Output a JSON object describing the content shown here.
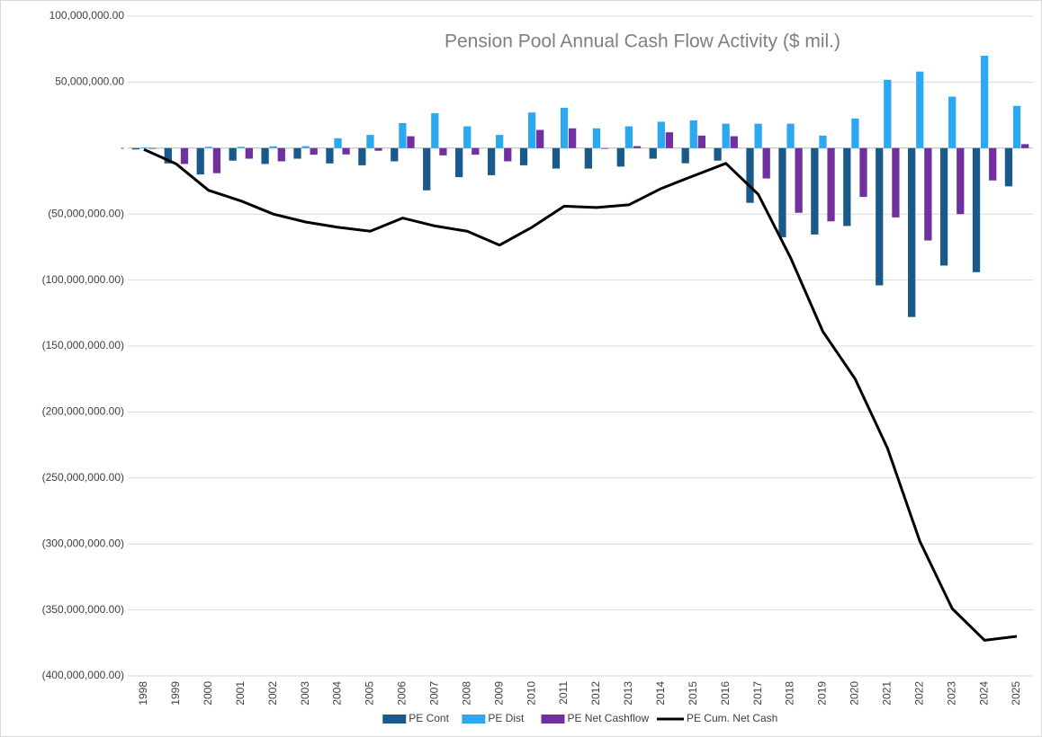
{
  "chart_data": {
    "type": "combo",
    "title": "Pension Pool Annual Cash Flow Activity ($ mil.)",
    "categories": [
      "1998",
      "1999",
      "2000",
      "2001",
      "2002",
      "2003",
      "2004",
      "2005",
      "2006",
      "2007",
      "2008",
      "2009",
      "2010",
      "2011",
      "2012",
      "2013",
      "2014",
      "2015",
      "2016",
      "2017",
      "2018",
      "2019",
      "2020",
      "2021",
      "2022",
      "2023",
      "2024",
      "2025"
    ],
    "series": [
      {
        "name": "PE Cont",
        "type": "bar",
        "color": "#1a5a8a",
        "values": [
          -1000000,
          -11600000,
          -20000000,
          -9500000,
          -12000000,
          -8000000,
          -11600000,
          -13000000,
          -10000000,
          -32000000,
          -22000000,
          -20500000,
          -13000000,
          -15500000,
          -15500000,
          -14000000,
          -8000000,
          -11500000,
          -9500000,
          -41500000,
          -67500000,
          -65500000,
          -59000000,
          -104000000,
          -128000000,
          -89000000,
          -94000000,
          -29000000
        ]
      },
      {
        "name": "PE Dist",
        "type": "bar",
        "color": "#2ba8f0",
        "values": [
          500000,
          0,
          1000000,
          1000000,
          1400000,
          1500000,
          7500000,
          10000000,
          19000000,
          26500000,
          16500000,
          10000000,
          27000000,
          30600000,
          15000000,
          16500000,
          20000000,
          21000000,
          18500000,
          18500000,
          18500000,
          9500000,
          22500000,
          51800000,
          58000000,
          39000000,
          70000000,
          32000000
        ]
      },
      {
        "name": "PE Net Cashflow",
        "type": "bar",
        "color": "#7030a0",
        "values": [
          -500000,
          -12000000,
          -19000000,
          -8000000,
          -10000000,
          -5000000,
          -4800000,
          -2000000,
          9000000,
          -5500000,
          -5000000,
          -10000000,
          13800000,
          15000000,
          -500000,
          1500000,
          12000000,
          9500000,
          9000000,
          -23000000,
          -49000000,
          -55500000,
          -37000000,
          -52500000,
          -70000000,
          -50000000,
          -24500000,
          3000000
        ]
      },
      {
        "name": "PE Cum. Net Cash",
        "type": "line",
        "color": "#000000",
        "values": [
          -1000000,
          -12000000,
          -32000000,
          -40000000,
          -50000000,
          -56000000,
          -60000000,
          -63000000,
          -53000000,
          -59000000,
          -63000000,
          -73500000,
          -60000000,
          -44000000,
          -45000000,
          -43000000,
          -30600000,
          -21000000,
          -11600000,
          -35000000,
          -83000000,
          -139000000,
          -175000000,
          -227500000,
          -298000000,
          -349000000,
          -373000000,
          -370000000
        ]
      }
    ],
    "ylim": [
      -400000000,
      100000000
    ],
    "yticks": [
      {
        "value": 100000000,
        "label": "100,000,000.00"
      },
      {
        "value": 50000000,
        "label": "50,000,000.00"
      },
      {
        "value": 0,
        "label": "-"
      },
      {
        "value": -50000000,
        "label": "(50,000,000.00)"
      },
      {
        "value": -100000000,
        "label": "(100,000,000.00)"
      },
      {
        "value": -150000000,
        "label": "(150,000,000.00)"
      },
      {
        "value": -200000000,
        "label": "(200,000,000.00)"
      },
      {
        "value": -250000000,
        "label": "(250,000,000.00)"
      },
      {
        "value": -300000000,
        "label": "(300,000,000.00)"
      },
      {
        "value": -350000000,
        "label": "(350,000,000.00)"
      },
      {
        "value": -400000000,
        "label": "(400,000,000.00)"
      }
    ],
    "grid": true,
    "legend": "bottom"
  }
}
